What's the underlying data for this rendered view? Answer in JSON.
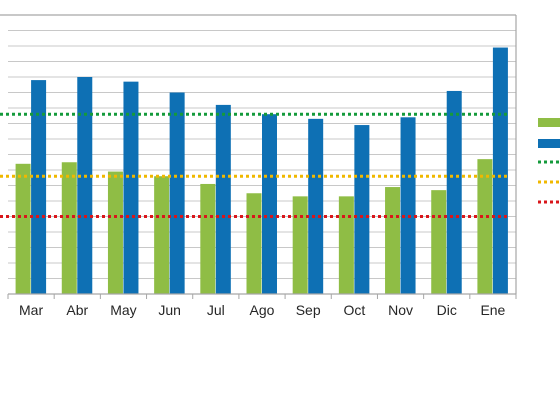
{
  "chart_data": {
    "type": "bar",
    "categories": [
      "Mar",
      "Abr",
      "May",
      "Jun",
      "Jul",
      "Ago",
      "Sep",
      "Oct",
      "Nov",
      "Dic",
      "Ene"
    ],
    "series": [
      {
        "color": "#8fbd45",
        "values": [
          84,
          85,
          79,
          76,
          71,
          65,
          63,
          63,
          69,
          67,
          87
        ]
      },
      {
        "color": "#0e70b4",
        "values": [
          138,
          140,
          137,
          130,
          122,
          116,
          113,
          109,
          114,
          131,
          159
        ]
      }
    ],
    "reference_lines": [
      {
        "color": "#149a3b",
        "value": 116
      },
      {
        "color": "#f0b800",
        "value": 76
      },
      {
        "color": "#d9161a",
        "value": 50
      }
    ],
    "ylim": [
      0,
      180
    ],
    "grid": true,
    "legend": "right",
    "xlabel": "",
    "ylabel": "",
    "title": ""
  }
}
